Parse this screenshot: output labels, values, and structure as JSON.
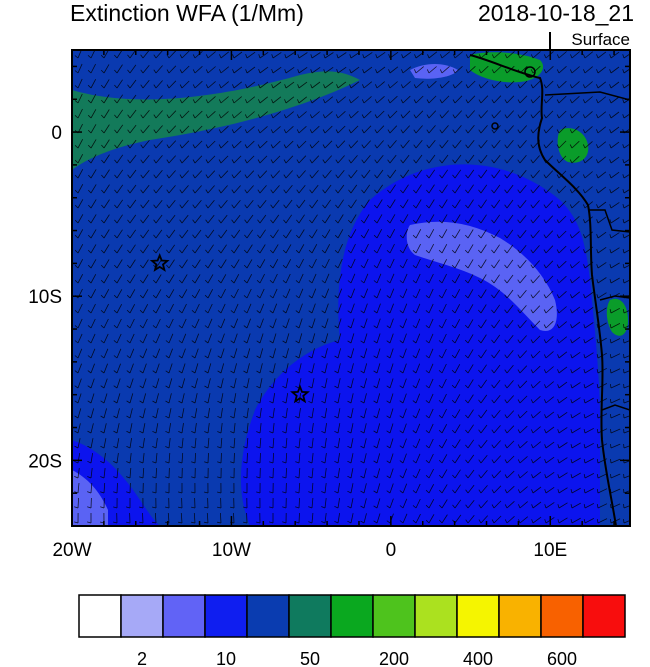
{
  "header": {
    "title": "Extinction WFA (1/Mm)",
    "datetime": "2018-10-18_21",
    "level": "Surface"
  },
  "map": {
    "lon_range": [
      -20,
      15
    ],
    "lat_range": [
      -24,
      5
    ],
    "x_ticks": [
      {
        "value": -20,
        "label": "20W"
      },
      {
        "value": -10,
        "label": "10W"
      },
      {
        "value": 0,
        "label": "0"
      },
      {
        "value": 10,
        "label": "10E"
      }
    ],
    "y_ticks": [
      {
        "value": 0,
        "label": "0"
      },
      {
        "value": -10,
        "label": "10S"
      },
      {
        "value": -20,
        "label": "20S"
      }
    ],
    "markers": [
      {
        "type": "star",
        "lon": -14.5,
        "lat": -8
      },
      {
        "type": "star",
        "lon": -5.7,
        "lat": -16
      }
    ],
    "colors": {
      "ocean_base": "#0a3ab0",
      "plume": "#0c14ee",
      "plume_core": "#5a63f4",
      "band": "#137a5a",
      "land": "#0a3ab0",
      "land_green": "#0a9c2a"
    }
  },
  "colorbar": {
    "colors": [
      "#ffffff",
      "#a6a9f7",
      "#6163f6",
      "#0f1ef0",
      "#0a3cb0",
      "#0f7a5e",
      "#0aa81f",
      "#4ec31d",
      "#abe11f",
      "#f5f500",
      "#f9b200",
      "#f86100",
      "#f80d0d"
    ],
    "labels": [
      {
        "boundary": 1,
        "text": "2"
      },
      {
        "boundary": 3,
        "text": "10"
      },
      {
        "boundary": 5,
        "text": "50"
      },
      {
        "boundary": 7,
        "text": "200"
      },
      {
        "boundary": 9,
        "text": "400"
      },
      {
        "boundary": 11,
        "text": "600"
      }
    ]
  }
}
